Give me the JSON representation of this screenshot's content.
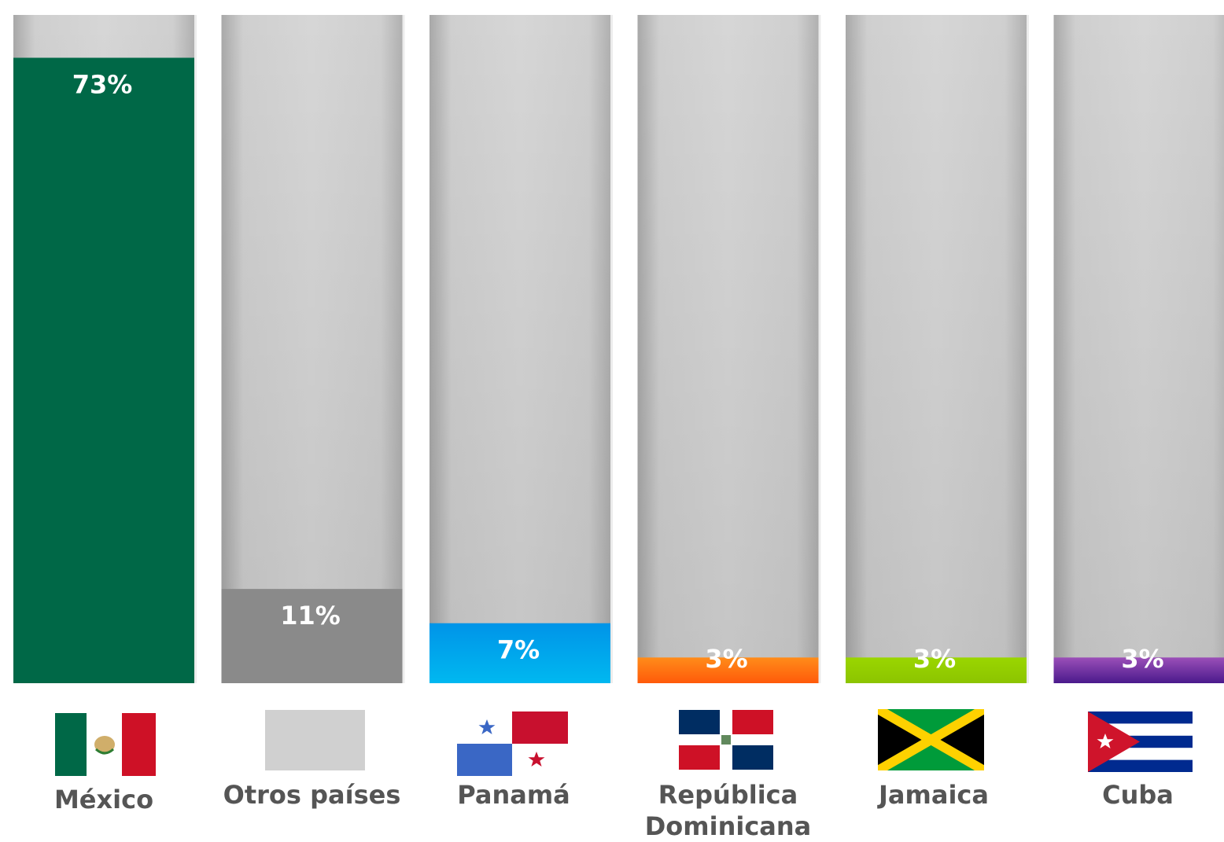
{
  "chart_data": {
    "type": "bar",
    "title": "",
    "xlabel": "",
    "ylabel": "",
    "ylim": [
      0,
      78
    ],
    "grid": false,
    "legend": "none",
    "categories": [
      "México",
      "Otros países",
      "Panamá",
      "República Dominicana",
      "Jamaica",
      "Cuba"
    ],
    "category_lines": [
      [
        "México"
      ],
      [
        "Otros países"
      ],
      [
        "Panamá"
      ],
      [
        "República",
        "Dominicana"
      ],
      [
        "Jamaica"
      ],
      [
        "Cuba"
      ]
    ],
    "values": [
      73,
      11,
      7,
      3,
      3,
      3
    ],
    "labels": [
      "73%",
      "11%",
      "7%",
      "3%",
      "3%",
      "3%"
    ],
    "bar_colors": [
      [
        "#006847",
        "#006847"
      ],
      [
        "#8a8a8a",
        "#8a8a8a"
      ],
      [
        "#0094e8",
        "#00b8f0"
      ],
      [
        "#ff8c1a",
        "#ff5a0a"
      ],
      [
        "#9ad600",
        "#8cc400"
      ],
      [
        "#9b4fb8",
        "#4a1a8c"
      ]
    ],
    "flags": [
      "mexico-flag-icon",
      "gray-swatch-icon",
      "panama-flag-icon",
      "dominican-republic-flag-icon",
      "jamaica-flag-icon",
      "cuba-flag-icon"
    ]
  }
}
